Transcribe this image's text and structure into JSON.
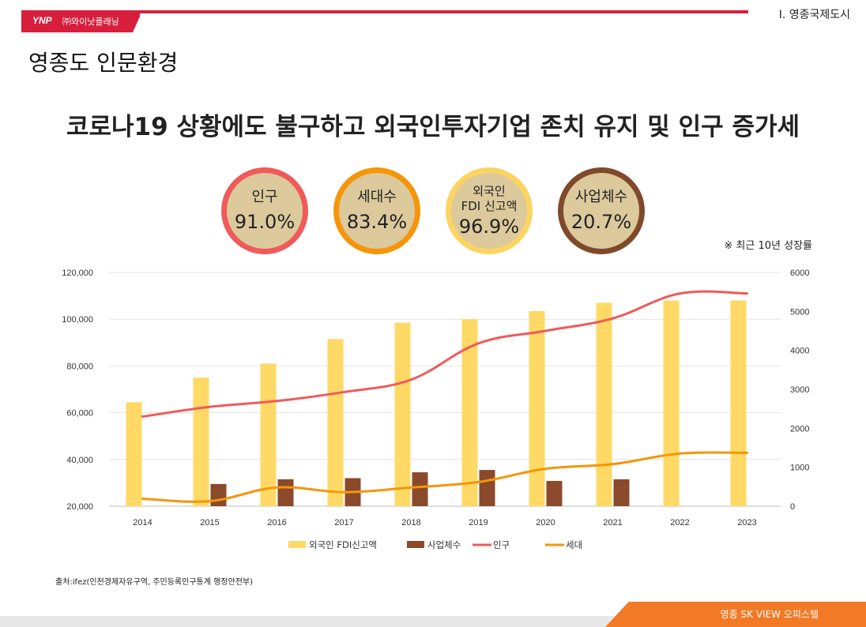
{
  "header": {
    "logo_brand": "YNP",
    "logo_company": "㈜와이낫플래닝",
    "section": "Ⅰ. 영종국제도시"
  },
  "page_title": "영종도 인문환경",
  "headline": "코로나19 상황에도 불구하고 외국인투자기업 존치 유지 및 인구 증가세",
  "growth_note": "※ 최근 10년 성장률",
  "stats": [
    {
      "label": "인구",
      "value": "91.0%",
      "border": "#f05a5a"
    },
    {
      "label": "세대수",
      "value": "83.4%",
      "border": "#f5960a"
    },
    {
      "label": "외국인\nFDI 신고액",
      "value": "96.9%",
      "border": "#fcd462"
    },
    {
      "label": "사업체수",
      "value": "20.7%",
      "border": "#7f4a2b"
    }
  ],
  "chart_data": {
    "type": "bar",
    "categories": [
      "2014",
      "2015",
      "2016",
      "2017",
      "2018",
      "2019",
      "2020",
      "2021",
      "2022",
      "2023"
    ],
    "left_axis": {
      "ylim": [
        20000,
        120000
      ],
      "ticks": [
        "20,000",
        "40,000",
        "60,000",
        "80,000",
        "100,000",
        "120,000"
      ]
    },
    "right_axis": {
      "ylim": [
        0,
        6000
      ],
      "ticks": [
        "0",
        "1000",
        "2000",
        "3000",
        "4000",
        "5000",
        "6000"
      ]
    },
    "series": [
      {
        "name": "외국인 FDI신고액",
        "kind": "bar",
        "axis": "left",
        "color": "#ffd966",
        "values": [
          64500,
          75000,
          81000,
          91500,
          98500,
          100000,
          103500,
          107000,
          108000,
          108000
        ]
      },
      {
        "name": "사업체수",
        "kind": "bar",
        "axis": "left",
        "color": "#8b4a2b",
        "values": [
          null,
          29500,
          31500,
          32000,
          34500,
          35500,
          30800,
          31500,
          null,
          null
        ]
      },
      {
        "name": "인구",
        "kind": "line",
        "axis": "right",
        "color": "#f05a5a",
        "values": [
          2300,
          2550,
          2700,
          2930,
          3250,
          4180,
          4500,
          4820,
          5460,
          5460
        ]
      },
      {
        "name": "세대",
        "kind": "line",
        "axis": "right",
        "color": "#f5960a",
        "values": [
          190,
          130,
          480,
          360,
          480,
          620,
          960,
          1080,
          1350,
          1370
        ]
      }
    ],
    "legend_position": "bottom",
    "grid": true
  },
  "source": "출처:ifez(인천경제자유구역, 주민등록인구통계 행정안전부)",
  "footer": "영종 SK VIEW 오피스텔"
}
